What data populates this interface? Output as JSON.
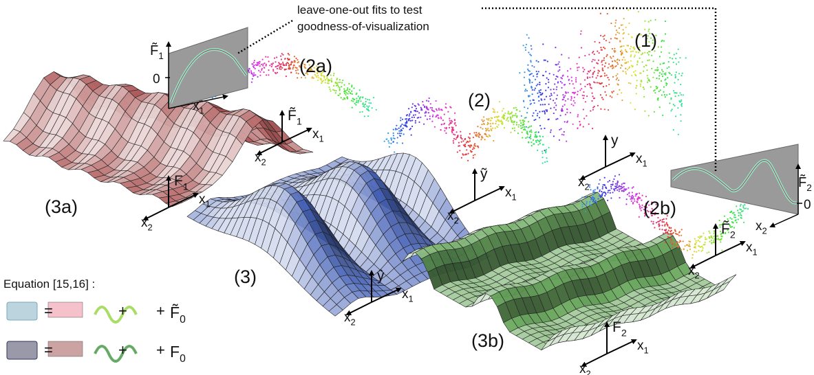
{
  "annotation": [
    "leave-one-out fits to test",
    "goodness-of-visualization"
  ],
  "panel_labels": [
    "(1)",
    "(2)",
    "(2a)",
    "(2b)",
    "(3)",
    "(3a)",
    "(3b)"
  ],
  "axes": [
    {
      "up": {
        "text": "y"
      },
      "right": {
        "text": "x",
        "sub": "1"
      },
      "left": {
        "text": "x",
        "sub": "2"
      }
    },
    {
      "up": {
        "text": "ỹ"
      },
      "right": {
        "text": "x",
        "sub": "1"
      },
      "left": {
        "text": "x",
        "sub": "2"
      }
    },
    {
      "up": {
        "text": "F̃",
        "sub": "1"
      },
      "right": {
        "text": "x",
        "sub": "1"
      },
      "left": {
        "text": "x",
        "sub": "2"
      }
    },
    {
      "up": {
        "text": "F̃",
        "sub": "2"
      },
      "right": {
        "text": "x",
        "sub": "1"
      },
      "left": {
        "text": "x",
        "sub": "2"
      }
    },
    {
      "up": {
        "text": "F",
        "sub": "1"
      },
      "right": {
        "text": "x",
        "sub": "1"
      },
      "left": {
        "text": "x",
        "sub": "2"
      }
    },
    {
      "up": {
        "text": "ŷ"
      },
      "right": {
        "text": "x",
        "sub": "1"
      },
      "left": {
        "text": "x",
        "sub": "2"
      }
    },
    {
      "up": {
        "text": "F",
        "sub": "2"
      },
      "right": {
        "text": "x",
        "sub": "1"
      },
      "left": {
        "text": "x",
        "sub": "2"
      }
    }
  ],
  "insets": [
    {
      "ylabel": {
        "text": "F̃",
        "sub": "1"
      },
      "xlabel": {
        "text": "x",
        "sub": "1"
      },
      "ytick": 0
    },
    {
      "ylabel": {
        "text": "F̃",
        "sub": "2"
      },
      "xlabel": {
        "text": "x",
        "sub": "2"
      },
      "ytick": 0
    }
  ],
  "equation": {
    "title": "Equation [15,16] :",
    "rows": [
      {
        "ops": [
          "=",
          "+",
          "+"
        ],
        "term": {
          "text": "F̃",
          "sub": "0"
        }
      },
      {
        "ops": [
          "=",
          "+",
          "+"
        ],
        "term": {
          "text": "F",
          "sub": "0"
        }
      }
    ]
  }
}
